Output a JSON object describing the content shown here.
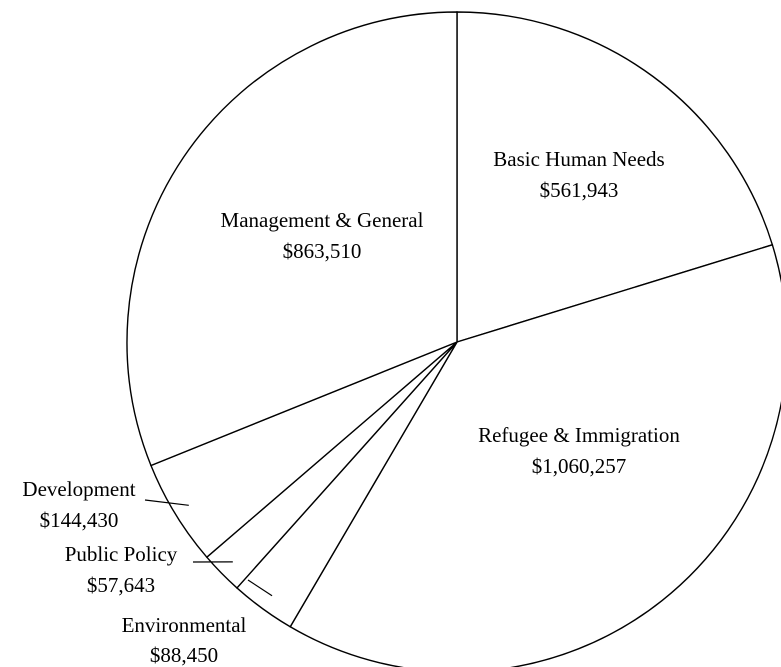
{
  "chart_data": {
    "type": "pie",
    "title": "",
    "legend": "none",
    "slices": [
      {
        "label": "Basic Human Needs",
        "value": 561943,
        "display": "$561,943",
        "color": "#ffffff"
      },
      {
        "label": "Refugee & Immigration",
        "value": 1060257,
        "display": "$1,060,257",
        "color": "#ffffff"
      },
      {
        "label": "Environmental",
        "value": 88450,
        "display": "$88,450",
        "color": "#ffffff"
      },
      {
        "label": "Public Policy",
        "value": 57643,
        "display": "$57,643",
        "color": "#ffffff"
      },
      {
        "label": "Development",
        "value": 144430,
        "display": "$144,430",
        "color": "#ffffff"
      },
      {
        "label": "Management & General",
        "value": 863510,
        "display": "$863,510",
        "color": "#ffffff"
      }
    ]
  }
}
